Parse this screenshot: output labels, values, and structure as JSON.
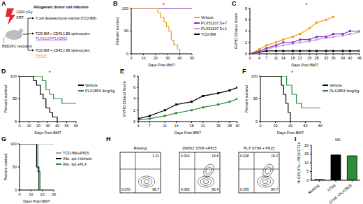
{
  "chart_data": [
    {
      "panel": "A",
      "type": "diagram",
      "title": "Allogeneic donor cell infusion",
      "dose": "1200 cGy",
      "treatment": "XRT",
      "recipient": "B6D2F1 recipient",
      "groups": [
        {
          "text": "T cell depleted bone marrow (TCD-BM)"
        },
        {
          "text": "TCD-BM + CD45.1 B6 splenocytes",
          "treatment": "PLX51107/PLX2853",
          "color": "#8e2fc8"
        },
        {
          "text": "TCD-BM + CD45.1 B6 splenocytes",
          "treatment": "Vehicle",
          "color": "#f39c12"
        }
      ]
    },
    {
      "panel": "B",
      "type": "line",
      "xlabel": "Days Post-BMT",
      "ylabel": "Percent survival",
      "xlim": [
        0,
        50
      ],
      "xticks": [
        0,
        10,
        20,
        30,
        40,
        50
      ],
      "ylim": [
        0,
        100
      ],
      "yticks": [
        0,
        50,
        100
      ],
      "legend": "right",
      "annotations": [
        "*"
      ],
      "series": [
        {
          "name": "Vehicle",
          "color": "#f39c12",
          "line_style": "step",
          "marker": "none",
          "x": [
            0,
            22,
            24,
            27,
            29,
            31,
            33,
            35,
            38,
            40
          ],
          "values": [
            100,
            90,
            80,
            70,
            60,
            50,
            30,
            20,
            10,
            0
          ]
        },
        {
          "name": "PLX51107 D+7",
          "color": "#8e2fc8",
          "line_style": "step",
          "marker": "none",
          "x": [
            0,
            50
          ],
          "values": [
            100,
            100
          ]
        },
        {
          "name": "PLX51107 D+1",
          "color": "#c39be0",
          "line_style": "step",
          "marker": "none",
          "x": [
            0,
            50
          ],
          "values": [
            100,
            100
          ]
        },
        {
          "name": "TCD-BM",
          "color": "#000000",
          "line_style": "step",
          "marker": "none",
          "x": [
            0,
            50
          ],
          "values": [
            100,
            100
          ]
        }
      ]
    },
    {
      "panel": "C",
      "type": "line",
      "xlabel": "Days Post-BMT",
      "ylabel": "GVHD Clinical Score",
      "xlim": [
        0,
        46
      ],
      "xticks": [
        0,
        4,
        7,
        11,
        14,
        18,
        21,
        25,
        28,
        32,
        35,
        39,
        42,
        46
      ],
      "ylim": [
        0,
        8
      ],
      "yticks": [
        0,
        2,
        4,
        6,
        8
      ],
      "annotations": [
        "*"
      ],
      "series": [
        {
          "color": "#f39c12",
          "line_style": "solid",
          "marker": "square",
          "x": [
            0,
            4,
            7,
            11,
            14,
            18,
            21,
            25,
            28,
            32,
            35
          ],
          "values": [
            0,
            0.8,
            1.5,
            2,
            2.5,
            3,
            3.5,
            4.5,
            5.5,
            6,
            6.5
          ]
        },
        {
          "color": "#8e2fc8",
          "line_style": "solid",
          "marker": "square",
          "x": [
            0,
            4,
            7,
            11,
            14,
            18,
            21,
            25,
            28,
            32,
            35,
            39,
            42,
            46
          ],
          "values": [
            0,
            0.5,
            1,
            1.5,
            2,
            2,
            2.5,
            2.5,
            3,
            3,
            3.5,
            3.5,
            4,
            4
          ]
        },
        {
          "color": "#c39be0",
          "line_style": "solid",
          "marker": "square",
          "x": [
            0,
            4,
            7,
            11,
            14,
            18,
            21,
            25,
            28,
            32,
            35,
            39,
            42,
            46
          ],
          "values": [
            0,
            0.4,
            0.8,
            1.2,
            1.5,
            1.8,
            2,
            2.2,
            2.5,
            2.8,
            3,
            3.2,
            3.5,
            3.8
          ]
        },
        {
          "color": "#000000",
          "line_style": "solid",
          "marker": "square",
          "x": [
            0,
            4,
            7,
            11,
            14,
            18,
            21,
            25,
            28,
            32,
            35,
            39,
            42,
            46
          ],
          "values": [
            0,
            0.3,
            0.5,
            0.5,
            0.5,
            0.5,
            0.5,
            0.5,
            0.5,
            0.5,
            0.5,
            0.5,
            0.5,
            0.5
          ]
        }
      ]
    },
    {
      "panel": "D",
      "type": "line",
      "xlabel": "Days Post-BMT",
      "ylabel": "Percent survival",
      "xlim": [
        0,
        60
      ],
      "xticks": [
        0,
        10,
        20,
        30,
        40,
        50,
        60
      ],
      "ylim": [
        0,
        100
      ],
      "yticks": [
        0,
        50,
        100
      ],
      "legend": "right",
      "annotations": [
        "*"
      ],
      "series": [
        {
          "name": "Vehicle",
          "color": "#000000",
          "line_style": "step",
          "marker": "none",
          "x": [
            0,
            15,
            18,
            22,
            25,
            28,
            32,
            35,
            40
          ],
          "values": [
            100,
            90,
            80,
            60,
            50,
            30,
            20,
            10,
            0
          ]
        },
        {
          "name": "PLX2853 4mg/kg",
          "color": "#2e8b3a",
          "line_style": "step",
          "marker": "none",
          "x": [
            0,
            24,
            28,
            32,
            36,
            45,
            60
          ],
          "values": [
            100,
            90,
            70,
            60,
            50,
            40,
            40
          ]
        }
      ]
    },
    {
      "panel": "E",
      "type": "line",
      "xlabel": "Days Post-BMT",
      "ylabel": "GVHD Clinical Score",
      "xlim": [
        4,
        30
      ],
      "xticks": [
        4,
        7,
        11,
        14,
        18,
        21,
        25,
        28,
        30
      ],
      "ylim": [
        0,
        8
      ],
      "yticks": [
        0,
        2,
        4,
        6,
        8
      ],
      "series": [
        {
          "color": "#000000",
          "line_style": "solid",
          "marker": "square",
          "x": [
            4,
            7,
            11,
            14,
            18,
            21,
            25,
            28,
            30
          ],
          "values": [
            0.5,
            1,
            2,
            3,
            3.5,
            4.5,
            5,
            5.5,
            6
          ]
        },
        {
          "color": "#2e8b3a",
          "line_style": "solid",
          "marker": "square",
          "x": [
            4,
            7,
            11,
            14,
            18,
            21,
            25,
            28,
            30
          ],
          "values": [
            0.3,
            0.5,
            1,
            1.5,
            2,
            2.5,
            3,
            3.5,
            4
          ]
        }
      ]
    },
    {
      "panel": "F",
      "type": "line",
      "xlabel": "Days Post-BMT",
      "ylabel": "Percent survival",
      "xlim": [
        0,
        80
      ],
      "xticks": [
        0,
        20,
        40,
        60,
        80
      ],
      "ylim": [
        0,
        100
      ],
      "yticks": [
        0,
        50,
        100
      ],
      "legend": "right",
      "annotations": [
        "*"
      ],
      "series": [
        {
          "name": "Vehicle",
          "color": "#000000",
          "line_style": "step",
          "marker": "none",
          "x": [
            0,
            28,
            31,
            34,
            37,
            40
          ],
          "values": [
            100,
            80,
            60,
            40,
            20,
            0
          ]
        },
        {
          "name": "PLX2853 4mg/kg",
          "color": "#2e8b3a",
          "line_style": "step",
          "marker": "none",
          "x": [
            0,
            35,
            42,
            48,
            55,
            80
          ],
          "values": [
            100,
            80,
            60,
            40,
            30,
            30
          ]
        }
      ]
    },
    {
      "panel": "G",
      "type": "line",
      "xlabel": "Days Post-BMT",
      "ylabel": "Percent survival",
      "xlim": [
        0,
        30
      ],
      "xticks": [
        0,
        10,
        20,
        30
      ],
      "ylim": [
        0,
        100
      ],
      "yticks": [
        0,
        50,
        100
      ],
      "legend": "right",
      "series": [
        {
          "name": "TCD-BM+P815",
          "color": "#9e9e9e",
          "line_style": "step",
          "marker": "none",
          "x": [
            0,
            30
          ],
          "values": [
            100,
            100
          ]
        },
        {
          "name": "Allo. spl.+Vehicle",
          "color": "#000000",
          "line_style": "step",
          "marker": "none",
          "x": [
            0,
            15,
            17
          ],
          "values": [
            100,
            50,
            0
          ]
        },
        {
          "name": "Allo. spl.+PLX",
          "color": "#2e8b3a",
          "line_style": "step",
          "marker": "none",
          "x": [
            0,
            16,
            18
          ],
          "values": [
            100,
            40,
            0
          ]
        }
      ]
    },
    {
      "panel": "H",
      "type": "flow",
      "plots": [
        {
          "title": "Resting",
          "ur": 1.21,
          "ll": {
            "value": 0.07,
            "label": "0.070"
          },
          "lr": 98.7
        },
        {
          "title": "DMSO STIM +P815",
          "ul": {
            "value": 0.01,
            "label": "0.010"
          },
          "ur": 13.6,
          "ll": 0.065,
          "lr": 86.4
        },
        {
          "title": "PLX STIM + P815",
          "ul": 0.028,
          "ur": 15.2,
          "ll": 0.055,
          "lr": 84.7
        }
      ]
    },
    {
      "panel": "I",
      "type": "bar",
      "ylabel": "% CD107a+ P815 CTLs",
      "categories": [
        "Resting",
        "STIM",
        "STIM +PLX2853"
      ],
      "values": [
        0.5,
        14.5,
        14
      ],
      "colors": [
        "#ffffff",
        "#000000",
        "#2e8b3a"
      ],
      "ylim": [
        0,
        20
      ],
      "yticks": [
        0,
        5,
        10,
        15,
        20
      ],
      "annotations": [
        "NS"
      ]
    }
  ]
}
